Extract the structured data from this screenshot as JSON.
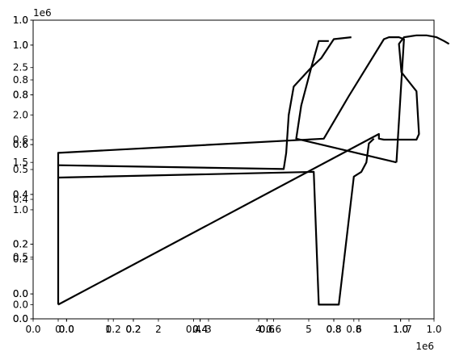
{
  "chart_data": {
    "type": "line",
    "title": "",
    "xlabel": "",
    "ylabel": "",
    "grid": false,
    "legend": "none",
    "line_color": "#000000",
    "axes_layers": [
      {
        "xlim": [
          0,
          1
        ],
        "ylim": [
          0,
          1
        ],
        "xticks": [
          "0.0",
          "0.2",
          "0.4",
          "0.6",
          "0.8",
          "1.0"
        ],
        "yticks": [
          "0.0",
          "0.2",
          "0.4",
          "0.6",
          "0.8",
          "1.0"
        ]
      },
      {
        "xlim": [
          -0.1,
          1.1
        ],
        "ylim": [
          0,
          1
        ],
        "xticks": [
          "0.0",
          "0.2",
          "0.4",
          "0.6",
          "0.8",
          "1.0"
        ],
        "yticks": [
          "0.0",
          "0.5",
          "1.0"
        ]
      },
      {
        "xlim": [
          -0.1,
          1.1
        ],
        "ylim": [
          -0.1,
          1.1
        ],
        "xticks": [
          "0.0",
          "0.2",
          "0.4",
          "0.6",
          "0.8",
          "1.0"
        ],
        "yticks": [
          "0.0",
          "0.2",
          "0.4",
          "0.6",
          "0.8",
          "1.0"
        ]
      },
      {
        "xlim": [
          -0.1,
          1.1
        ],
        "ylim": [
          -0.1,
          1.1
        ],
        "xticks": [
          "0.0",
          "0.2",
          "0.4",
          "0.6",
          "0.8",
          "1.0"
        ],
        "yticks": [
          "0.0",
          "0.2",
          "0.4",
          "0.6",
          "0.8",
          "1.0"
        ]
      },
      {
        "xlim": [
          -500000,
          7500000
        ],
        "ylim": [
          -150000,
          3000000
        ],
        "x_offset_label": "1e6",
        "y_offset_label": "1e6",
        "xticks": [
          "0",
          "1",
          "2",
          "3",
          "4",
          "5",
          "6",
          "7"
        ],
        "yticks": [
          "0.0",
          "0.5",
          "1.0",
          "1.5",
          "2.0",
          "2.5"
        ],
        "series": [
          {
            "values": [
              [
                0,
                0
              ],
              [
                0,
                1340000
              ],
              [
                0,
                1470000
              ],
              [
                0,
                1600000
              ],
              [
                5300000,
                1750000
              ],
              [
                5800000,
                2200000
              ],
              [
                6500000,
                2800000
              ],
              [
                6600000,
                2820000
              ],
              [
                6800000,
                2820000
              ],
              [
                6900000,
                2800000
              ],
              [
                6750000,
                1500000
              ]
            ]
          },
          {
            "values": [
              [
                5400000,
                2780000
              ],
              [
                5200000,
                2780000
              ],
              [
                5050000,
                2500000
              ],
              [
                4700000,
                2300000
              ],
              [
                4600000,
                2000000
              ],
              [
                4550000,
                1600000
              ],
              [
                4500000,
                1430000
              ],
              [
                0,
                1470000
              ]
            ]
          },
          {
            "values": [
              [
                0,
                1340000
              ],
              [
                5100000,
                1400000
              ],
              [
                5200000,
                0
              ],
              [
                5600000,
                0
              ],
              [
                5900000,
                1350000
              ],
              [
                6050000,
                1400000
              ],
              [
                6150000,
                1500000
              ],
              [
                6200000,
                1700000
              ],
              [
                6300000,
                1750000
              ]
            ]
          },
          {
            "values": [
              [
                0,
                0
              ],
              [
                6400000,
                1800000
              ],
              [
                6400000,
                1750000
              ],
              [
                6500000,
                1740000
              ],
              [
                7150000,
                1740000
              ],
              [
                7200000,
                1800000
              ],
              [
                7150000,
                2250000
              ],
              [
                6850000,
                2450000
              ],
              [
                6800000,
                2750000
              ],
              [
                6900000,
                2820000
              ],
              [
                7150000,
                2840000
              ],
              [
                7350000,
                2840000
              ],
              [
                7550000,
                2820000
              ],
              [
                7700000,
                2780000
              ],
              [
                7800000,
                2750000
              ]
            ]
          },
          {
            "values": [
              [
                5850000,
                2820000
              ],
              [
                5500000,
                2800000
              ],
              [
                5250000,
                2600000
              ],
              [
                5050000,
                2500000
              ],
              [
                4850000,
                2100000
              ],
              [
                4750000,
                1750000
              ],
              [
                6750000,
                1500000
              ]
            ]
          }
        ]
      }
    ]
  }
}
